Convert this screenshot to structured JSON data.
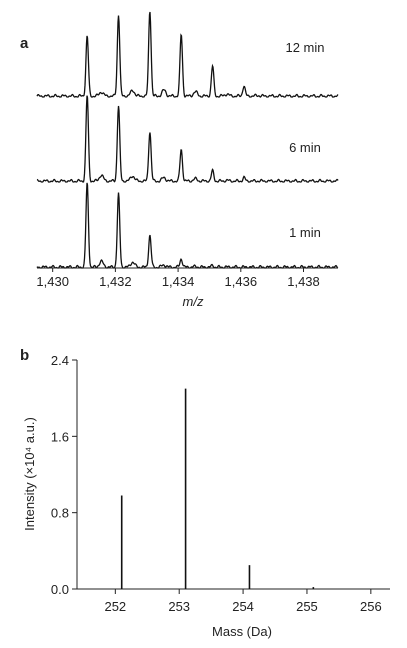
{
  "chart_data": [
    {
      "panel": "a",
      "type": "line",
      "xlabel": "m/z",
      "xlim": [
        1429.5,
        1439.1
      ],
      "xticks": [
        1430,
        1432,
        1434,
        1436,
        1438
      ],
      "xtick_labels": [
        "1,430",
        "1,432",
        "1,434",
        "1,436",
        "1,438"
      ],
      "series": [
        {
          "name": "12 min",
          "peaks": [
            {
              "x": 1431.1,
              "y": 0.7
            },
            {
              "x": 1432.1,
              "y": 0.95
            },
            {
              "x": 1433.1,
              "y": 1.0
            },
            {
              "x": 1434.1,
              "y": 0.72
            },
            {
              "x": 1435.1,
              "y": 0.35
            },
            {
              "x": 1436.1,
              "y": 0.12
            }
          ]
        },
        {
          "name": "6 min",
          "peaks": [
            {
              "x": 1431.1,
              "y": 1.0
            },
            {
              "x": 1432.1,
              "y": 0.88
            },
            {
              "x": 1433.1,
              "y": 0.58
            },
            {
              "x": 1434.1,
              "y": 0.37
            },
            {
              "x": 1435.1,
              "y": 0.12
            },
            {
              "x": 1436.1,
              "y": 0.04
            }
          ]
        },
        {
          "name": "1 min",
          "peaks": [
            {
              "x": 1431.1,
              "y": 1.0
            },
            {
              "x": 1432.1,
              "y": 0.87
            },
            {
              "x": 1433.1,
              "y": 0.38
            },
            {
              "x": 1434.1,
              "y": 0.1
            },
            {
              "x": 1435.1,
              "y": 0.02
            }
          ]
        }
      ]
    },
    {
      "panel": "b",
      "type": "bar",
      "xlabel": "Mass (Da)",
      "ylabel": "Intensity (×10⁴ a.u.)",
      "xlim": [
        251.4,
        256.3
      ],
      "ylim": [
        0,
        2.4
      ],
      "xticks": [
        252,
        253,
        254,
        255,
        256
      ],
      "yticks": [
        0.0,
        0.8,
        1.6,
        2.4
      ],
      "ytick_labels": [
        "0.0",
        "0.8",
        "1.6",
        "2.4"
      ],
      "x": [
        252.1,
        253.1,
        254.1,
        255.1
      ],
      "values": [
        0.98,
        2.1,
        0.25,
        0.02
      ]
    }
  ]
}
